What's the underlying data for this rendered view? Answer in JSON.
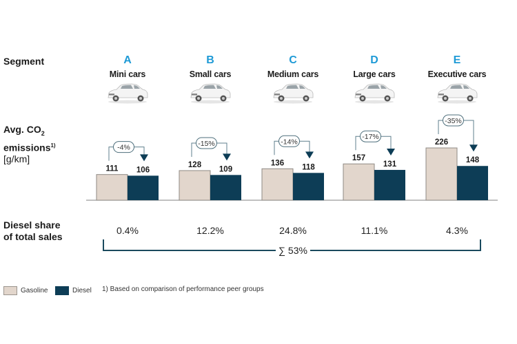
{
  "labels": {
    "segment": "Segment",
    "co2_line1": "Avg. CO",
    "co2_sub": "2",
    "co2_line2": "emissions",
    "co2_sup": "1)",
    "co2_unit": "[g/km]",
    "share_line1": "Diesel share",
    "share_line2": "of total sales"
  },
  "segments": [
    {
      "letter": "A",
      "name": "Mini cars",
      "icon": "mini-car-icon"
    },
    {
      "letter": "B",
      "name": "Small cars",
      "icon": "small-car-icon"
    },
    {
      "letter": "C",
      "name": "Medium cars",
      "icon": "medium-car-icon"
    },
    {
      "letter": "D",
      "name": "Large cars",
      "icon": "large-car-icon"
    },
    {
      "letter": "E",
      "name": "Executive cars",
      "icon": "executive-car-icon"
    }
  ],
  "diesel_share": [
    "0.4%",
    "12.2%",
    "24.8%",
    "11.1%",
    "4.3%"
  ],
  "total_share": "∑ 53%",
  "legend": {
    "gasoline": "Gasoline",
    "diesel": "Diesel",
    "footnote": "1) Based on comparison of performance peer groups"
  },
  "colors": {
    "gasoline": "#e2d6cc",
    "gasoline_border": "#8f8a85",
    "diesel": "#0d3d56",
    "accent": "#1e9ad6",
    "bracket": "#1a4a5e"
  },
  "chart_data": {
    "type": "bar",
    "title": "",
    "xlabel": "",
    "ylabel": "Avg. CO2 emissions [g/km]",
    "categories": [
      "A",
      "B",
      "C",
      "D",
      "E"
    ],
    "series": [
      {
        "name": "Gasoline",
        "values": [
          111,
          128,
          136,
          157,
          226
        ]
      },
      {
        "name": "Diesel",
        "values": [
          106,
          109,
          118,
          131,
          148
        ]
      }
    ],
    "annotations": [
      "-4%",
      "-15%",
      "-14%",
      "-17%",
      "-35%"
    ],
    "ylim": [
      0,
      226
    ],
    "grid": false,
    "legend": "bottom-left"
  }
}
